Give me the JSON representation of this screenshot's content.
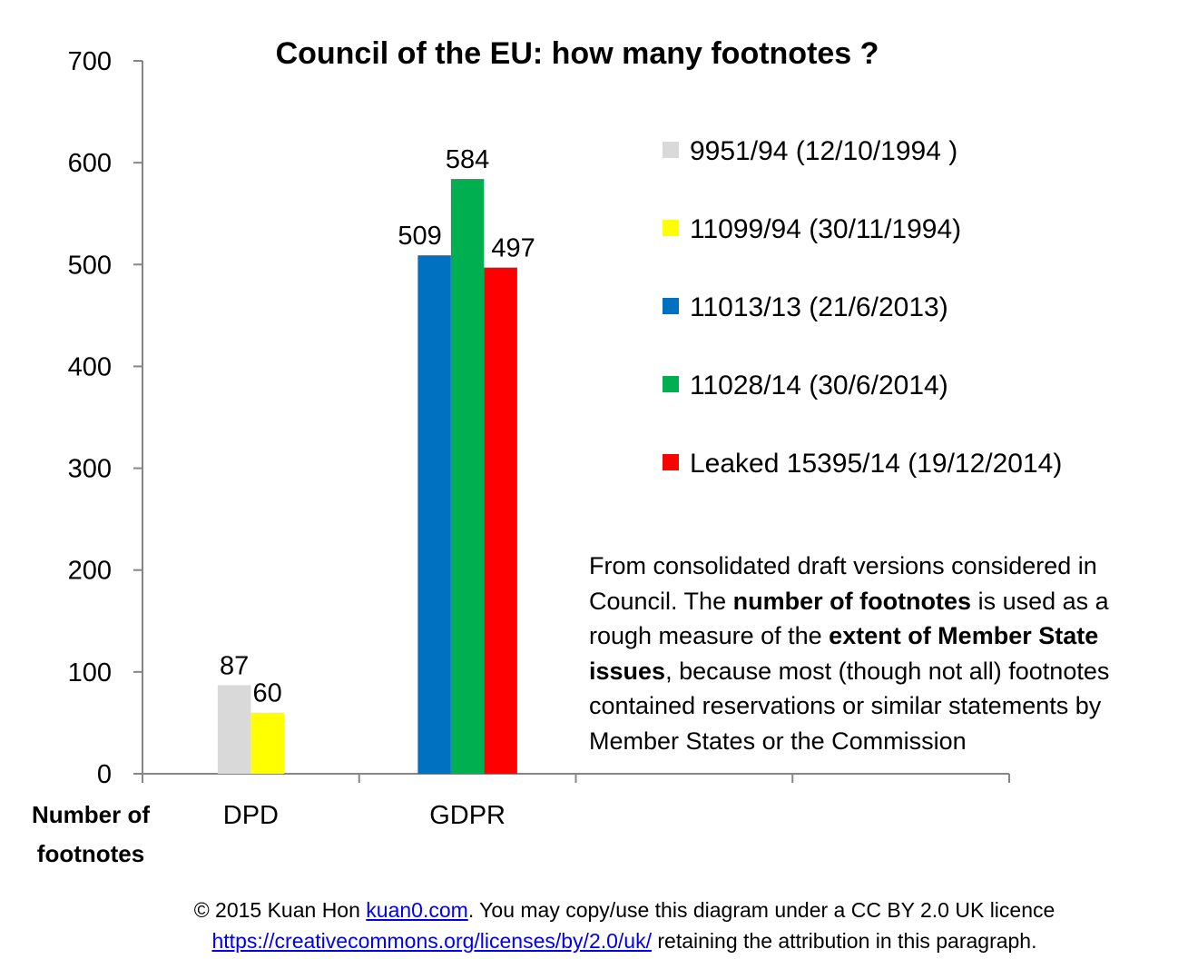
{
  "chart_data": {
    "type": "bar",
    "title": "Council of the EU:  how many footnotes ?",
    "ylabel_line1": "Number  of",
    "ylabel_line2": "footnotes",
    "ylim": [
      0,
      700
    ],
    "yticks": [
      0,
      100,
      200,
      300,
      400,
      500,
      600,
      700
    ],
    "categories": [
      "DPD",
      "GDPR",
      "",
      ""
    ],
    "legend_position": "right",
    "grid": false,
    "series": [
      {
        "name": "9951/94 (12/10/1994 )",
        "color": "#d9d9d9",
        "values": [
          87,
          null,
          null,
          null
        ]
      },
      {
        "name": "11099/94 (30/11/1994)",
        "color": "#ffff00",
        "values": [
          60,
          null,
          null,
          null
        ]
      },
      {
        "name": "11013/13 (21/6/2013)",
        "color": "#0070c0",
        "values": [
          null,
          509,
          null,
          null
        ]
      },
      {
        "name": "11028/14 (30/6/2014)",
        "color": "#00b050",
        "values": [
          null,
          584,
          null,
          null
        ]
      },
      {
        "name": "Leaked 15395/14 (19/12/2014)",
        "color": "#ff0000",
        "values": [
          null,
          497,
          null,
          null
        ]
      }
    ]
  },
  "note": {
    "p1": "From consolidated draft versions considered in Council. The ",
    "b1": "number of footnotes",
    "p2": " is used as a rough measure of the ",
    "b2": "extent of Member State issues",
    "p3": ", because most (though not all) footnotes contained reservations or similar statements by Member States or the Commission"
  },
  "footer": {
    "t1": "© 2015 Kuan Hon ",
    "link1": "kuan0.com",
    "t2": ". You may copy/use this diagram under a CC BY 2.0 UK licence",
    "link2": "https://creativecommons.org/licenses/by/2.0/uk/",
    "t3": " retaining the attribution in this paragraph."
  }
}
